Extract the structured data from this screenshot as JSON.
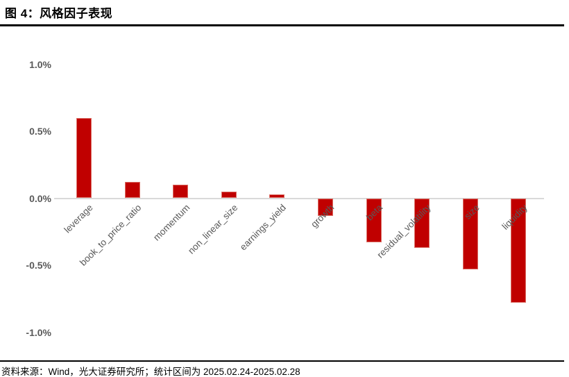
{
  "figure": {
    "title": "图 4：风格因子表现",
    "source_note": "资料来源：Wind，光大证券研究所；统计区间为 2025.02.24-2025.02.28"
  },
  "colors": {
    "bar_fill": "#c00000",
    "bar_border": "#db7168",
    "axis_line": "#d9d9d9",
    "tick_label": "#595959",
    "title_text": "#000000",
    "rule_line": "#000000"
  },
  "chart_data": {
    "type": "bar",
    "categories": [
      "leverage",
      "book_to_price_ratio",
      "momentum",
      "non_linear_size",
      "earnings_yield",
      "growth",
      "beta",
      "residual_volatility",
      "size",
      "liquidity"
    ],
    "values": [
      0.6,
      0.12,
      0.1,
      0.05,
      0.03,
      -0.13,
      -0.33,
      -0.37,
      -0.53,
      -0.78
    ],
    "unit": "%",
    "title": "",
    "xlabel": "",
    "ylabel": "",
    "y_ticks": [
      {
        "label": "1.0%",
        "value": 1.0
      },
      {
        "label": "0.5%",
        "value": 0.5
      },
      {
        "label": "0.0%",
        "value": 0.0
      },
      {
        "label": "-0.5%",
        "value": -0.5
      },
      {
        "label": "-1.0%",
        "value": -1.0
      }
    ],
    "ylim": [
      -1.0,
      1.0
    ],
    "grid": false,
    "legend": null,
    "x_label_rotation_deg": 45
  }
}
